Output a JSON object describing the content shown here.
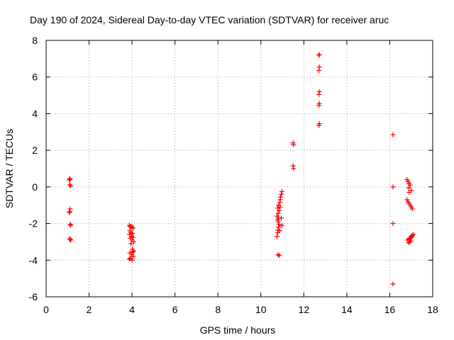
{
  "chart_data": {
    "type": "scatter",
    "title": "Day 190 of 2024, Sidereal Day-to-day VTEC variation (SDTVAR) for receiver aruc",
    "xlabel": "GPS time / hours",
    "ylabel": "SDTVAR / TECUs",
    "xlim": [
      0,
      18
    ],
    "ylim": [
      -6,
      8
    ],
    "xticks": [
      0,
      2,
      4,
      6,
      8,
      10,
      12,
      14,
      16,
      18
    ],
    "yticks": [
      -6,
      -4,
      -2,
      0,
      2,
      4,
      6,
      8
    ],
    "grid": true,
    "marker": "+",
    "color": "#ff0000",
    "series": [
      {
        "name": "SDTVAR",
        "points": [
          [
            1.1,
            0.45
          ],
          [
            1.12,
            0.42
          ],
          [
            1.08,
            0.38
          ],
          [
            1.1,
            0.12
          ],
          [
            1.15,
            0.05
          ],
          [
            1.12,
            -1.2
          ],
          [
            1.1,
            -1.35
          ],
          [
            1.08,
            -1.4
          ],
          [
            1.12,
            -2.05
          ],
          [
            1.15,
            -2.1
          ],
          [
            1.1,
            -2.82
          ],
          [
            1.12,
            -2.88
          ],
          [
            1.15,
            -2.9
          ],
          [
            3.88,
            -2.1
          ],
          [
            3.92,
            -2.15
          ],
          [
            3.95,
            -2.2
          ],
          [
            4.0,
            -2.18
          ],
          [
            4.05,
            -2.25
          ],
          [
            3.9,
            -2.4
          ],
          [
            3.95,
            -2.5
          ],
          [
            4.02,
            -2.55
          ],
          [
            3.88,
            -2.6
          ],
          [
            3.98,
            -2.7
          ],
          [
            4.05,
            -2.75
          ],
          [
            3.92,
            -2.8
          ],
          [
            4.0,
            -2.9
          ],
          [
            4.08,
            -3.0
          ],
          [
            3.95,
            -3.1
          ],
          [
            4.02,
            -3.4
          ],
          [
            4.08,
            -3.5
          ],
          [
            3.9,
            -3.6
          ],
          [
            3.98,
            -3.7
          ],
          [
            4.05,
            -3.8
          ],
          [
            3.92,
            -3.9
          ],
          [
            4.0,
            -4.0
          ],
          [
            3.88,
            -3.95
          ],
          [
            4.03,
            -3.55
          ],
          [
            10.75,
            -2.7
          ],
          [
            10.78,
            -2.5
          ],
          [
            10.8,
            -2.35
          ],
          [
            10.82,
            -2.2
          ],
          [
            10.85,
            -2.05
          ],
          [
            10.8,
            -1.9
          ],
          [
            10.78,
            -1.8
          ],
          [
            10.82,
            -1.7
          ],
          [
            10.75,
            -1.6
          ],
          [
            10.8,
            -1.45
          ],
          [
            10.85,
            -1.3
          ],
          [
            10.78,
            -1.15
          ],
          [
            10.82,
            -1.0
          ],
          [
            10.88,
            -0.85
          ],
          [
            10.9,
            -0.7
          ],
          [
            10.92,
            -0.55
          ],
          [
            10.95,
            -0.4
          ],
          [
            10.98,
            -0.25
          ],
          [
            10.9,
            -1.1
          ],
          [
            10.95,
            -1.7
          ],
          [
            10.98,
            -2.1
          ],
          [
            10.88,
            -2.4
          ],
          [
            10.8,
            -3.7
          ],
          [
            10.85,
            -3.75
          ],
          [
            11.5,
            2.4
          ],
          [
            11.52,
            2.3
          ],
          [
            11.5,
            1.15
          ],
          [
            11.52,
            1.0
          ],
          [
            12.7,
            7.2
          ],
          [
            12.72,
            7.22
          ],
          [
            12.72,
            6.55
          ],
          [
            12.7,
            6.35
          ],
          [
            12.72,
            5.2
          ],
          [
            12.7,
            5.05
          ],
          [
            12.72,
            4.55
          ],
          [
            12.7,
            4.45
          ],
          [
            12.72,
            3.45
          ],
          [
            12.7,
            3.35
          ],
          [
            16.15,
            2.85
          ],
          [
            16.15,
            0.0
          ],
          [
            16.15,
            -2.0
          ],
          [
            16.15,
            -5.3
          ],
          [
            16.8,
            0.4
          ],
          [
            16.85,
            0.3
          ],
          [
            16.9,
            0.2
          ],
          [
            16.95,
            0.1
          ],
          [
            16.88,
            -0.05
          ],
          [
            17.0,
            -0.2
          ],
          [
            16.9,
            -0.3
          ],
          [
            16.8,
            -0.7
          ],
          [
            16.85,
            -0.8
          ],
          [
            16.9,
            -0.9
          ],
          [
            16.95,
            -1.0
          ],
          [
            17.0,
            -1.1
          ],
          [
            17.05,
            -1.2
          ],
          [
            16.82,
            -2.9
          ],
          [
            16.88,
            -3.05
          ],
          [
            16.92,
            -3.0
          ],
          [
            16.95,
            -2.8
          ],
          [
            17.0,
            -2.7
          ],
          [
            17.05,
            -2.65
          ],
          [
            17.1,
            -2.6
          ],
          [
            16.9,
            -2.85
          ],
          [
            16.98,
            -2.95
          ],
          [
            17.02,
            -2.75
          ]
        ]
      }
    ]
  }
}
